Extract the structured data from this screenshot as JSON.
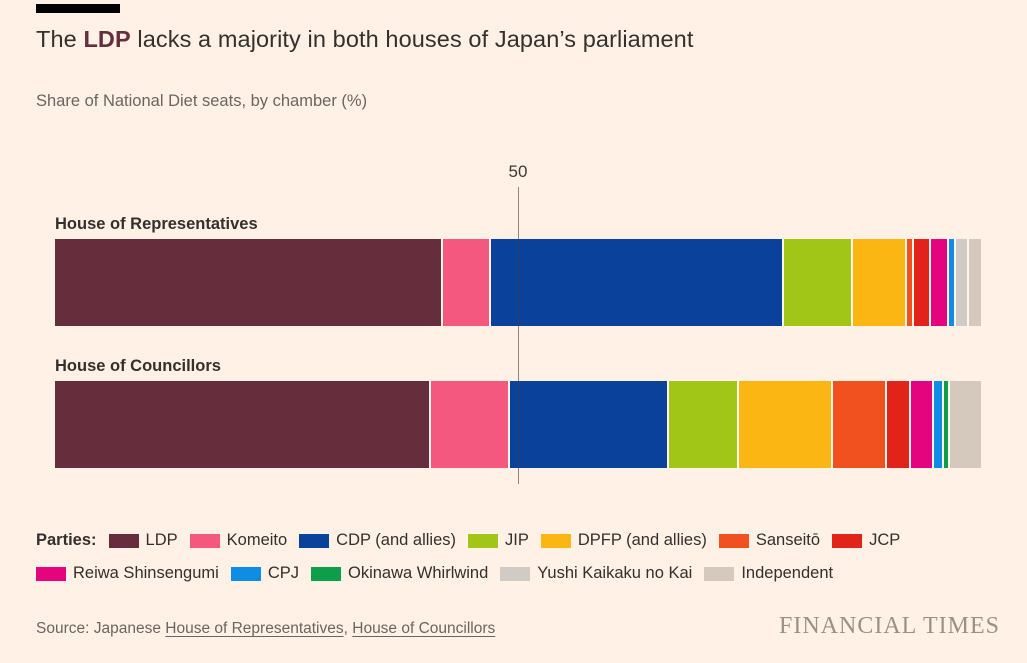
{
  "header": {
    "title_pre": "The ",
    "title_highlight": "LDP",
    "title_post": " lacks a majority in both houses of Japan’s parliament",
    "subtitle": "Share of National Diet seats, by chamber (%)"
  },
  "colors": {
    "background": "#fff1e5",
    "text_dark": "#33302e",
    "text_muted": "#6b6560",
    "highlight": "#662e3d",
    "gridline": "#4b423a",
    "brand": "#9a9186"
  },
  "chart_data": {
    "type": "bar",
    "variant": "horizontal-stacked",
    "unit": "%",
    "xlim": [
      0,
      100
    ],
    "grid": "single vertical line at 50, drawn over bars",
    "gridline_value": 50,
    "gridline_label": "50",
    "legend_position": "bottom",
    "parties": [
      {
        "name": "LDP",
        "color": "#662e3d"
      },
      {
        "name": "Komeito",
        "color": "#f4587f"
      },
      {
        "name": "CDP (and allies)",
        "color": "#0a419b"
      },
      {
        "name": "JIP",
        "color": "#a2c617"
      },
      {
        "name": "DPFP (and allies)",
        "color": "#fcb614"
      },
      {
        "name": "Sanseitō",
        "color": "#f0511f"
      },
      {
        "name": "JCP",
        "color": "#e22319"
      },
      {
        "name": "Reiwa Shinsengumi",
        "color": "#e4047e"
      },
      {
        "name": "CPJ",
        "color": "#0f8ce4"
      },
      {
        "name": "Okinawa Whirlwind",
        "color": "#0d9e4a"
      },
      {
        "name": "Yushi Kaikaku no Kai",
        "color": "#d0cbc4"
      },
      {
        "name": "Independent",
        "color": "#d4c9bc"
      }
    ],
    "chambers": [
      {
        "label": "House of Representatives",
        "segments": [
          {
            "party": "LDP",
            "value": 42.0
          },
          {
            "party": "Komeito",
            "value": 5.1
          },
          {
            "party": "CDP (and allies)",
            "value": 31.7
          },
          {
            "party": "JIP",
            "value": 7.3
          },
          {
            "party": "DPFP (and allies)",
            "value": 5.6
          },
          {
            "party": "Sanseitō",
            "value": 0.6
          },
          {
            "party": "JCP",
            "value": 1.6
          },
          {
            "party": "Reiwa Shinsengumi",
            "value": 1.8
          },
          {
            "party": "CPJ",
            "value": 0.5
          },
          {
            "party": "Yushi Kaikaku no Kai",
            "value": 1.2
          },
          {
            "party": "Independent",
            "value": 1.3
          }
        ]
      },
      {
        "label": "House of Councillors",
        "segments": [
          {
            "party": "LDP",
            "value": 40.3
          },
          {
            "party": "Komeito",
            "value": 8.2
          },
          {
            "party": "CDP (and allies)",
            "value": 16.9
          },
          {
            "party": "JIP",
            "value": 7.3
          },
          {
            "party": "DPFP (and allies)",
            "value": 9.9
          },
          {
            "party": "Sanseitō",
            "value": 5.6
          },
          {
            "party": "JCP",
            "value": 2.4
          },
          {
            "party": "Reiwa Shinsengumi",
            "value": 2.3
          },
          {
            "party": "CPJ",
            "value": 0.8
          },
          {
            "party": "Okinawa Whirlwind",
            "value": 0.5
          },
          {
            "party": "Independent",
            "value": 3.3
          }
        ]
      }
    ]
  },
  "legend": {
    "label": "Parties:",
    "rows": [
      [
        "LDP",
        "Komeito",
        "CDP (and allies)",
        "JIP",
        "DPFP (and allies)",
        "Sanseitō",
        "JCP"
      ],
      [
        "Reiwa Shinsengumi",
        "CPJ",
        "Okinawa Whirlwind",
        "Yushi Kaikaku no Kai",
        "Independent"
      ]
    ]
  },
  "footer": {
    "source_prefix": "Source: Japanese ",
    "source_links": [
      "House of Representatives",
      "House of Councillors"
    ],
    "source_separator": ", ",
    "brand": "FINANCIAL TIMES"
  }
}
